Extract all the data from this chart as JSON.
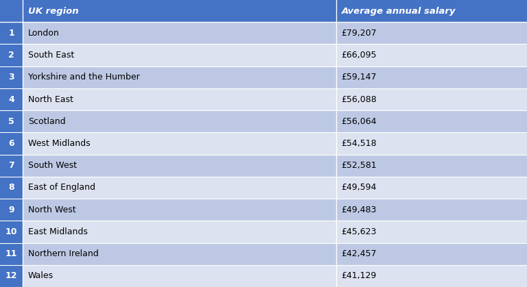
{
  "header": [
    "UK region",
    "Average annual salary"
  ],
  "ranks": [
    "1",
    "2",
    "3",
    "4",
    "5",
    "6",
    "7",
    "8",
    "9",
    "10",
    "11",
    "12"
  ],
  "regions": [
    "London",
    "South East",
    "Yorkshire and the Humber",
    "North East",
    "Scotland",
    "West Midlands",
    "South West",
    "East of England",
    "North West",
    "East Midlands",
    "Northern Ireland",
    "Wales"
  ],
  "salaries": [
    "£79,207",
    "£66,095",
    "£59,147",
    "£56,088",
    "£56,064",
    "£54,518",
    "£52,581",
    "£49,594",
    "£49,483",
    "£45,623",
    "£42,457",
    "£41,129"
  ],
  "header_bg": "#4472C4",
  "header_text": "#FFFFFF",
  "rank_bg": "#4472C4",
  "row_bg_odd": "#BDC9E4",
  "row_bg_even": "#DDE2F0",
  "row_text": "#000000",
  "border_color": "#FFFFFF",
  "fig_bg": "#4472C4"
}
